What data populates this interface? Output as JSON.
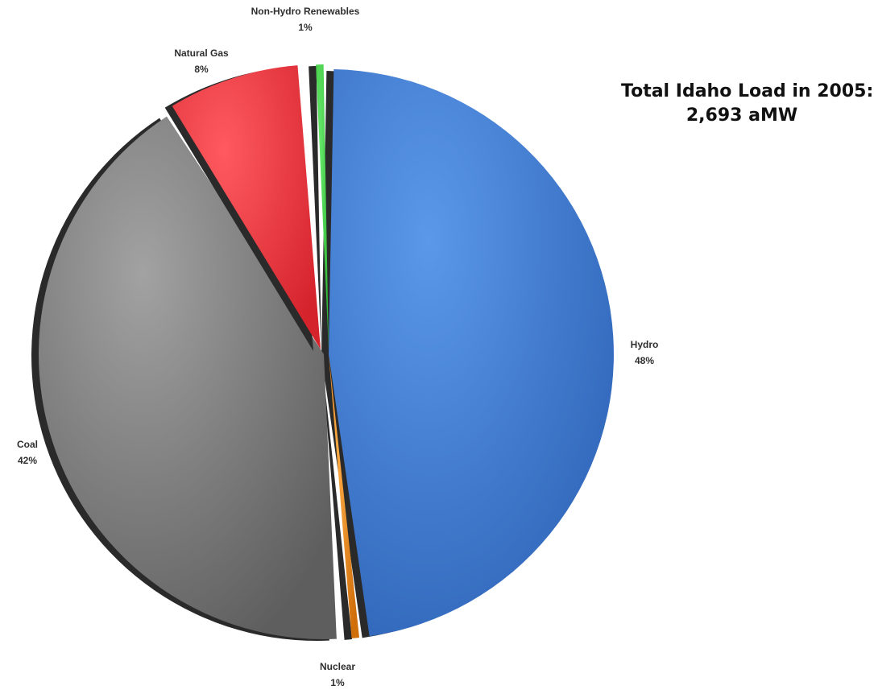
{
  "chart_data": {
    "type": "pie",
    "title": "Total Idaho Load in 2005:",
    "subtitle": "2,693 aMW",
    "slices": [
      {
        "name": "Hydro",
        "label": "48%",
        "value": 48,
        "color": "#4a84d8"
      },
      {
        "name": "Nuclear",
        "label": "1%",
        "value": 1,
        "color": "#f08a1c"
      },
      {
        "name": "Coal",
        "label": "42%",
        "value": 42,
        "color": "#8a8a8a"
      },
      {
        "name": "Natural Gas",
        "label": "8%",
        "value": 8,
        "color": "#ee3a42"
      },
      {
        "name": "Non-Hydro Renewables",
        "label": "1%",
        "value": 1,
        "color": "#45d24a"
      }
    ]
  }
}
